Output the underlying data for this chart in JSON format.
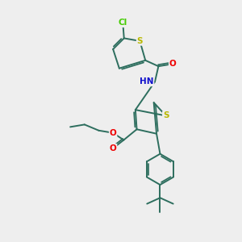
{
  "bg_color": "#eeeeee",
  "bond_color": "#2d6e5e",
  "bond_width": 1.4,
  "dbo": 0.055,
  "atom_colors": {
    "S": "#b8b800",
    "O": "#ee0000",
    "N": "#1010cc",
    "Cl": "#44cc00",
    "C": "#2d6e5e",
    "H": "#888888"
  },
  "fontsize": 7.5
}
